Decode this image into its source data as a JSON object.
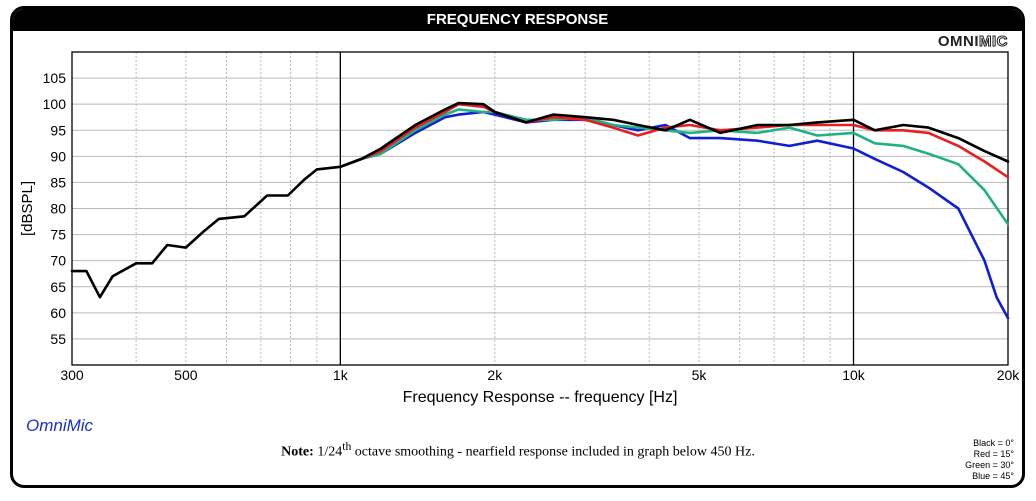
{
  "title": "FREQUENCY RESPONSE",
  "logo": {
    "part1": "OMNI",
    "part2": "MIC"
  },
  "brand": "OmniMic",
  "note": {
    "label": "Note:",
    "text_pre": "1/24",
    "superscript": "th",
    "text_post": " octave smoothing - nearfield response included in graph below 450 Hz."
  },
  "legend": [
    "Black = 0°",
    "Red = 15°",
    "Green = 30°",
    "Blue = 45°"
  ],
  "chart_data": {
    "type": "line",
    "title": "FREQUENCY RESPONSE",
    "xlabel": "Frequency Response -- frequency [Hz]",
    "ylabel": "[dBSPL]",
    "xscale": "log",
    "xlim": [
      300,
      20000
    ],
    "ylim": [
      50,
      110
    ],
    "xticks": [
      300,
      500,
      1000,
      2000,
      5000,
      10000,
      20000
    ],
    "xtick_labels": [
      "300",
      "500",
      "1k",
      "2k",
      "5k",
      "10k",
      "20k"
    ],
    "yticks": [
      55,
      60,
      65,
      70,
      75,
      80,
      85,
      90,
      95,
      100,
      105
    ],
    "grid": true,
    "series": [
      {
        "name": "Black = 0°",
        "color": "#000000",
        "points": [
          [
            300,
            68
          ],
          [
            320,
            68
          ],
          [
            340,
            63
          ],
          [
            360,
            67
          ],
          [
            400,
            69.5
          ],
          [
            430,
            69.5
          ],
          [
            460,
            73
          ],
          [
            500,
            72.5
          ],
          [
            540,
            75.5
          ],
          [
            580,
            78
          ],
          [
            650,
            78.5
          ],
          [
            720,
            82.5
          ],
          [
            790,
            82.5
          ],
          [
            850,
            85.5
          ],
          [
            900,
            87.5
          ],
          [
            1000,
            88
          ],
          [
            1100,
            89.5
          ],
          [
            1200,
            91.5
          ],
          [
            1400,
            96
          ],
          [
            1600,
            99
          ],
          [
            1700,
            100.2
          ],
          [
            1900,
            100
          ],
          [
            2000,
            98.5
          ],
          [
            2300,
            96.5
          ],
          [
            2600,
            98
          ],
          [
            3000,
            97.5
          ],
          [
            3400,
            97
          ],
          [
            3800,
            96
          ],
          [
            4300,
            95
          ],
          [
            4800,
            97
          ],
          [
            5500,
            94.5
          ],
          [
            6500,
            96
          ],
          [
            7500,
            96
          ],
          [
            8500,
            96.5
          ],
          [
            10000,
            97
          ],
          [
            11000,
            95
          ],
          [
            12500,
            96
          ],
          [
            14000,
            95.5
          ],
          [
            16000,
            93.5
          ],
          [
            18000,
            91
          ],
          [
            20000,
            89
          ]
        ]
      },
      {
        "name": "Red = 15°",
        "color": "#e62020",
        "points": [
          [
            1000,
            88
          ],
          [
            1100,
            89.5
          ],
          [
            1200,
            91
          ],
          [
            1400,
            95.5
          ],
          [
            1600,
            98.5
          ],
          [
            1700,
            100
          ],
          [
            1900,
            99.5
          ],
          [
            2000,
            98.5
          ],
          [
            2300,
            96.5
          ],
          [
            2600,
            97.5
          ],
          [
            3000,
            97
          ],
          [
            3400,
            95.5
          ],
          [
            3800,
            94
          ],
          [
            4300,
            95.5
          ],
          [
            4800,
            96
          ],
          [
            5500,
            95
          ],
          [
            6500,
            95.5
          ],
          [
            7500,
            96
          ],
          [
            8500,
            96
          ],
          [
            10000,
            96
          ],
          [
            11000,
            95
          ],
          [
            12500,
            95
          ],
          [
            14000,
            94.5
          ],
          [
            16000,
            92
          ],
          [
            18000,
            89
          ],
          [
            20000,
            86
          ]
        ]
      },
      {
        "name": "Green = 30°",
        "color": "#1fb285",
        "points": [
          [
            1000,
            88
          ],
          [
            1100,
            89.5
          ],
          [
            1200,
            90.5
          ],
          [
            1400,
            95
          ],
          [
            1600,
            98
          ],
          [
            1700,
            99
          ],
          [
            1900,
            98.5
          ],
          [
            2000,
            98.5
          ],
          [
            2300,
            97
          ],
          [
            2600,
            97
          ],
          [
            3000,
            97.5
          ],
          [
            3400,
            96
          ],
          [
            3800,
            95.5
          ],
          [
            4300,
            95
          ],
          [
            4800,
            94.5
          ],
          [
            5500,
            95
          ],
          [
            6500,
            94.5
          ],
          [
            7500,
            95.5
          ],
          [
            8500,
            94
          ],
          [
            10000,
            94.5
          ],
          [
            11000,
            92.5
          ],
          [
            12500,
            92
          ],
          [
            14000,
            90.5
          ],
          [
            16000,
            88.5
          ],
          [
            18000,
            83.5
          ],
          [
            20000,
            77
          ]
        ]
      },
      {
        "name": "Blue = 45°",
        "color": "#1020d0",
        "points": [
          [
            1000,
            88
          ],
          [
            1100,
            89.5
          ],
          [
            1200,
            90.5
          ],
          [
            1400,
            94.5
          ],
          [
            1600,
            97.5
          ],
          [
            1700,
            98
          ],
          [
            1900,
            98.5
          ],
          [
            2000,
            98
          ],
          [
            2300,
            96.5
          ],
          [
            2600,
            97
          ],
          [
            3000,
            97
          ],
          [
            3400,
            96
          ],
          [
            3800,
            95
          ],
          [
            4300,
            96
          ],
          [
            4800,
            93.5
          ],
          [
            5500,
            93.5
          ],
          [
            6500,
            93
          ],
          [
            7500,
            92
          ],
          [
            8500,
            93
          ],
          [
            10000,
            91.5
          ],
          [
            11000,
            89.5
          ],
          [
            12500,
            87
          ],
          [
            14000,
            84
          ],
          [
            16000,
            80
          ],
          [
            18000,
            70
          ],
          [
            19000,
            63
          ],
          [
            20000,
            59
          ]
        ]
      }
    ]
  }
}
